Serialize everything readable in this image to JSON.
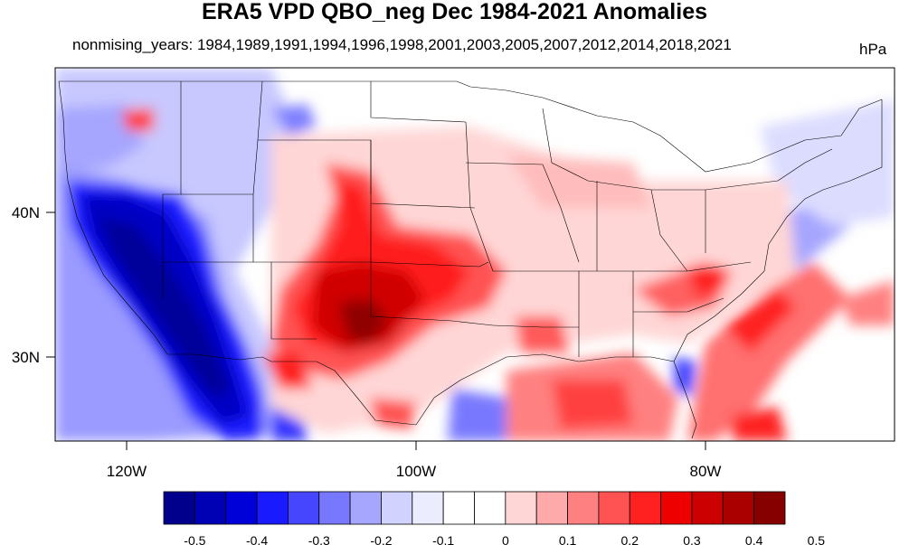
{
  "title": "ERA5 VPD QBO_neg Dec 1984-2021 Anomalies",
  "subtitle": "nonmising_years: 1984,1989,1991,1994,1996,1998,2001,2003,2005,2007,2012,2014,2018,2021",
  "units": "hPa",
  "axes": {
    "x_ticks": [
      {
        "label": "120W",
        "lon": -120
      },
      {
        "label": "100W",
        "lon": -100
      },
      {
        "label": "80W",
        "lon": -80
      }
    ],
    "y_ticks": [
      {
        "label": "40N",
        "lat": 40
      },
      {
        "label": "30N",
        "lat": 30
      }
    ],
    "lon_range": [
      -125,
      -67
    ],
    "lat_range": [
      24,
      49.5
    ]
  },
  "colorbar": {
    "levels": [
      "-0.5",
      "-0.4",
      "-0.3",
      "-0.2",
      "-0.1",
      "0",
      "0.1",
      "0.2",
      "0.3",
      "0.4",
      "0.5"
    ],
    "colors": [
      "#00008c",
      "#0000b4",
      "#0000d8",
      "#1a1aff",
      "#4646ff",
      "#7878ff",
      "#a6a6ff",
      "#d2d2ff",
      "#ececff",
      "#ffffff",
      "#ffffff",
      "#ffd6d6",
      "#ffaaaa",
      "#ff8080",
      "#ff5252",
      "#ff2020",
      "#ee0000",
      "#cc0000",
      "#aa0000",
      "#860000"
    ]
  }
}
